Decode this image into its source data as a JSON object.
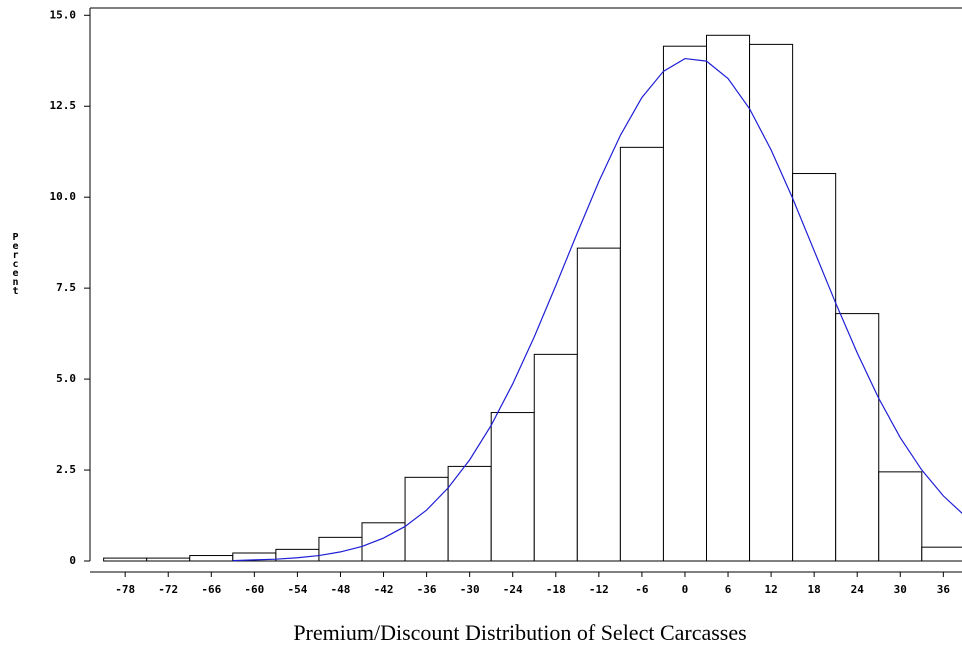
{
  "chart_data": {
    "type": "histogram",
    "title": "Premium/Discount Distribution of Select Carcasses",
    "ylabel": "Percent",
    "bins": [
      -81,
      -75,
      -69,
      -63,
      -57,
      -51,
      -45,
      -39,
      -33,
      -27,
      -21,
      -15,
      -9,
      -3,
      3,
      9,
      15,
      21,
      27,
      33,
      39
    ],
    "values": [
      0.08,
      0.08,
      0.15,
      0.22,
      0.32,
      0.65,
      1.05,
      2.3,
      2.6,
      4.08,
      5.68,
      8.6,
      11.37,
      14.15,
      14.45,
      14.2,
      10.65,
      6.8,
      2.45,
      0.38
    ],
    "color": "#ffffff",
    "curve": {
      "color": "#1f1fd6",
      "x": [
        -63,
        -60,
        -57,
        -54,
        -51,
        -48,
        -45,
        -42,
        -39,
        -36,
        -33,
        -30,
        -27,
        -24,
        -21,
        -18,
        -15,
        -12,
        -9,
        -6,
        -3,
        0,
        3,
        6,
        9,
        12,
        15,
        18,
        21,
        24,
        27,
        30,
        33,
        36,
        39
      ],
      "values": [
        0.01,
        0.03,
        0.05,
        0.09,
        0.15,
        0.25,
        0.4,
        0.63,
        0.95,
        1.4,
        2.01,
        2.78,
        3.73,
        4.87,
        6.16,
        7.57,
        9.02,
        10.43,
        11.7,
        12.74,
        13.46,
        13.81,
        13.74,
        13.26,
        12.43,
        11.3,
        9.97,
        8.53,
        7.09,
        5.72,
        4.47,
        3.39,
        2.5,
        1.79,
        1.24
      ]
    },
    "xlim": [
      -82.9,
      38.6
    ],
    "xticks": [
      -78,
      -72,
      -66,
      -60,
      -54,
      -48,
      -42,
      -36,
      -30,
      -24,
      -18,
      -12,
      -6,
      0,
      6,
      12,
      18,
      24,
      30,
      36
    ],
    "ylim": [
      0,
      15.2
    ],
    "yticks": [
      0,
      2.5,
      {
        "value": 5,
        "label": "5.0"
      },
      7.5,
      {
        "value": 10,
        "label": "10.0"
      },
      12.5,
      {
        "value": 15,
        "label": "15.0"
      }
    ]
  }
}
